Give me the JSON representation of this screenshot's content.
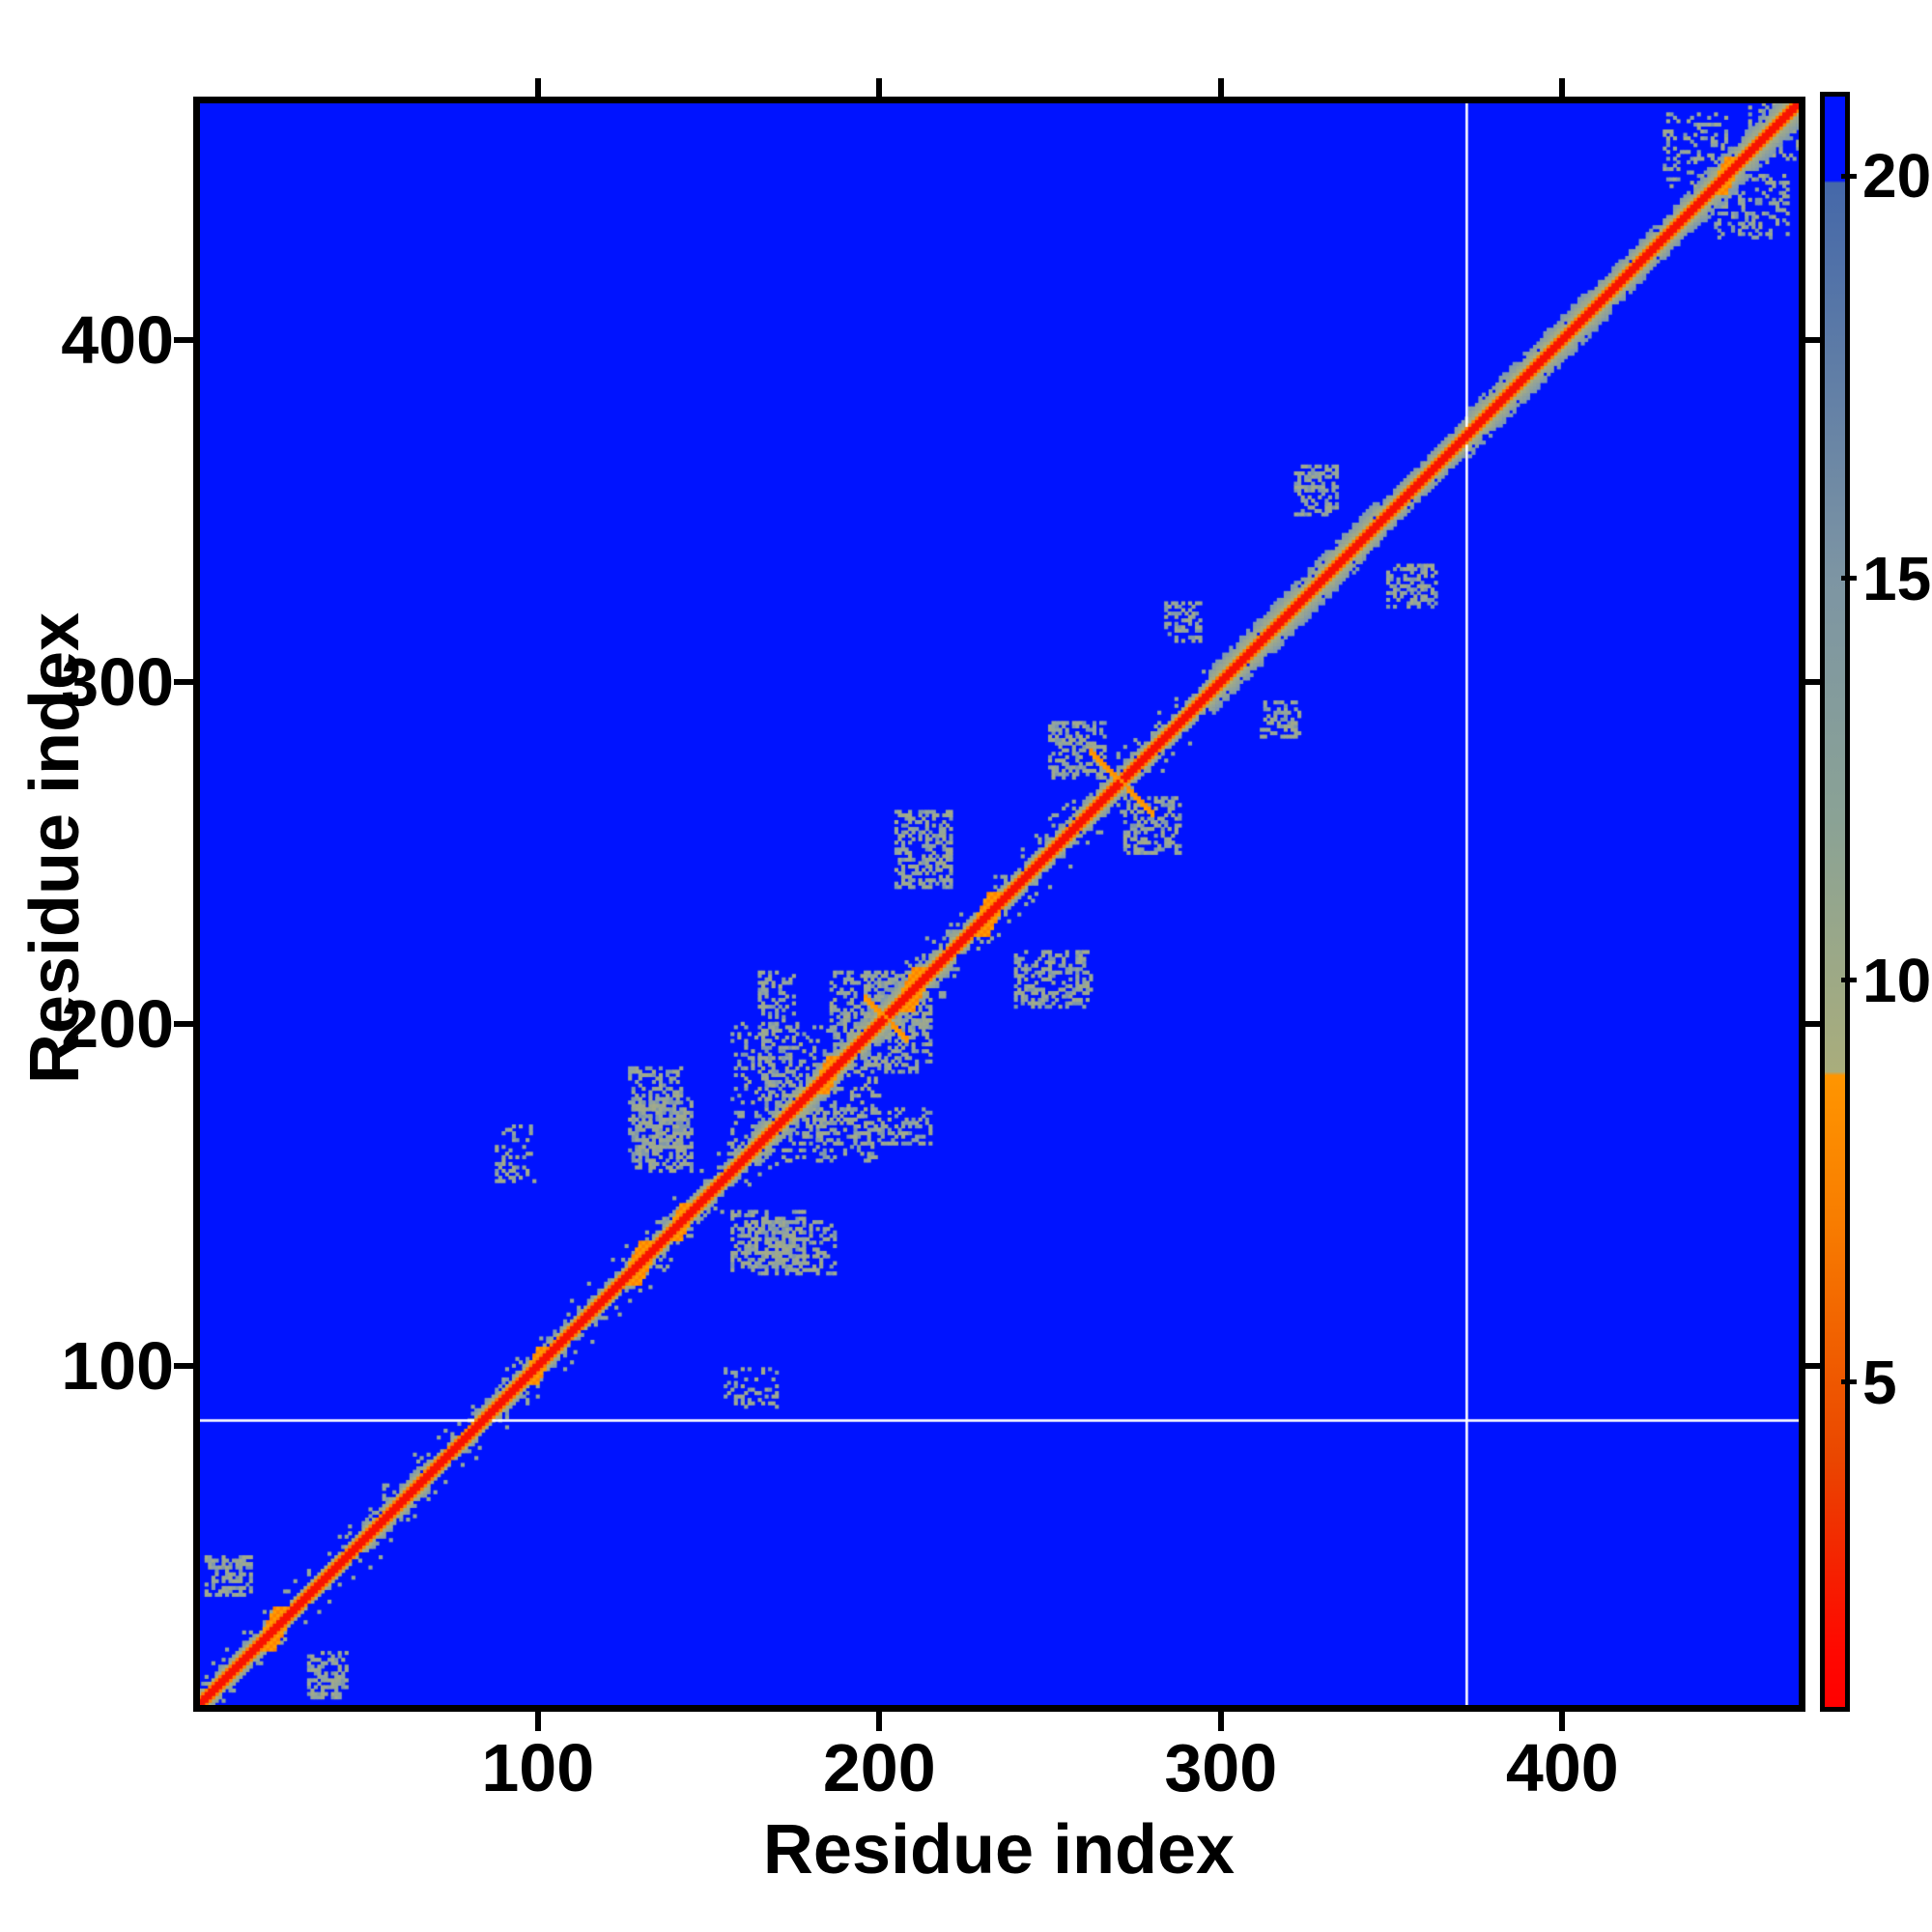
{
  "chart_data": {
    "type": "heatmap",
    "title": "",
    "xlabel": "Residue index",
    "ylabel": "Residue index",
    "x_ticks": [
      100,
      200,
      300,
      400
    ],
    "y_ticks": [
      100,
      200,
      300,
      400
    ],
    "x_range": [
      1,
      469
    ],
    "y_range": [
      1,
      469
    ],
    "n_residues": 469,
    "grid": false,
    "legend_position": "right-colorbar",
    "description": "Protein residue-residue distance map: red/orange band along the main diagonal (short distances), ragged gray-green contact clusters near the diagonal, uniform blue background for distances beyond ~20, one horizontal white missing-data line near residue 84 and one vertical white missing-data line near residue 372.",
    "colorbar": {
      "ticks": [
        5,
        10,
        15,
        20
      ],
      "range": [
        1,
        21
      ],
      "orientation": "vertical"
    },
    "colormap_stops": [
      [
        21.05,
        "#0013ff"
      ],
      [
        20.0,
        "#0013ff"
      ],
      [
        19.97,
        "#4568a9"
      ],
      [
        15.0,
        "#7d95a3"
      ],
      [
        12.0,
        "#8aa295"
      ],
      [
        8.85,
        "#a9ad7c"
      ],
      [
        8.8,
        "#ff9500"
      ],
      [
        7.0,
        "#f87d00"
      ],
      [
        5.5,
        "#f16100"
      ],
      [
        4.0,
        "#ea4600"
      ],
      [
        2.5,
        "#f61e00"
      ],
      [
        1.6,
        "#ff0800"
      ],
      [
        0.9,
        "#ff0000"
      ]
    ],
    "palette": {
      "background": "#0013ff",
      "diag_core": "#f91400",
      "diag_orange": [
        "#ff9c00",
        "#ff8300"
      ],
      "halo_inner": "#adb07a",
      "halo_outer": "#7f9ab0",
      "scatter": "#93a69b",
      "cluster_colors": [
        "#8fa3a4",
        "#97a796",
        "#a2aa8b",
        "#8098ab",
        "#9fa98e"
      ],
      "missing_line": "#ffffff"
    },
    "diagonal_band": {
      "core_halfwidth_res": 1.35,
      "orange_halfwidth_res": 2.6,
      "halo_segments": [
        [
          1,
          20,
          5,
          0
        ],
        [
          20,
          48,
          4,
          0
        ],
        [
          48,
          68,
          5.5,
          0
        ],
        [
          68,
          78,
          3.8,
          0
        ],
        [
          78,
          108,
          5,
          0
        ],
        [
          108,
          126,
          4.2,
          0
        ],
        [
          126,
          150,
          5.5,
          0
        ],
        [
          150,
          163,
          4.5,
          0
        ],
        [
          163,
          222,
          6.5,
          0
        ],
        [
          222,
          248,
          4.8,
          0
        ],
        [
          248,
          275,
          5.5,
          0
        ],
        [
          275,
          296,
          4.8,
          0
        ],
        [
          296,
          346,
          7,
          1
        ],
        [
          346,
          372,
          5.5,
          1
        ],
        [
          372,
          413,
          7,
          1
        ],
        [
          413,
          441,
          6,
          1
        ],
        [
          441,
          469,
          7,
          1
        ]
      ]
    },
    "diamond_bulges": [
      [
        23,
        4
      ],
      [
        100,
        3
      ],
      [
        130,
        4
      ],
      [
        142,
        3
      ],
      [
        185,
        3
      ],
      [
        210,
        4
      ],
      [
        232,
        4
      ],
      [
        448,
        3
      ]
    ],
    "cross_features": [
      [
        202,
        6
      ],
      [
        271,
        9
      ]
    ],
    "contact_clusters": [
      [
        3,
        16,
        33,
        44,
        0.5,
        1
      ],
      [
        88,
        99,
        154,
        170,
        0.25,
        1
      ],
      [
        128,
        145,
        157,
        178,
        0.45,
        1
      ],
      [
        162,
        187,
        127,
        142,
        0.4,
        1
      ],
      [
        165,
        175,
        178,
        215,
        0.35,
        1
      ],
      [
        186,
        215,
        196,
        215,
        0.35,
        1
      ],
      [
        157,
        200,
        160,
        200,
        0.18,
        0
      ],
      [
        240,
        262,
        205,
        221,
        0.45,
        1
      ],
      [
        250,
        266,
        272,
        288,
        0.45,
        1
      ],
      [
        312,
        323,
        284,
        294,
        0.4,
        1
      ],
      [
        322,
        334,
        349,
        363,
        0.45,
        1
      ],
      [
        445,
        466,
        430,
        448,
        0.3,
        1
      ],
      [
        455,
        469,
        452,
        469,
        0.25,
        0
      ]
    ],
    "missing_data_lines": {
      "row_residue": 84,
      "column_residue": 372
    }
  }
}
